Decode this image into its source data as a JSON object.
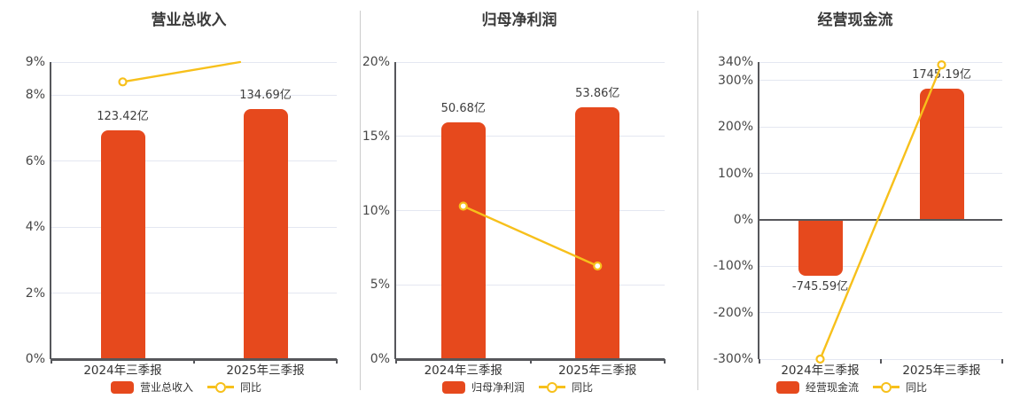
{
  "background_color": "#ffffff",
  "axis_color": "#56575b",
  "gridline_color": "#e4e7f1",
  "separator_color": "#cccccc",
  "chart_data": [
    {
      "type": "bar",
      "title": "营业总收入",
      "categories": [
        "2024年三季报",
        "2025年三季报"
      ],
      "bar_series": {
        "name": "营业总收入",
        "unit": "亿",
        "values": [
          123.42,
          134.69
        ],
        "labels": [
          "123.42亿",
          "134.69亿"
        ],
        "color": "#e6491d",
        "hidden_axis": {
          "min": 0,
          "max": 160
        }
      },
      "line_series": {
        "name": "同比",
        "unit": "%",
        "values": [
          8.4,
          9.13
        ],
        "color": "#f7c01b"
      },
      "y_axis": {
        "min": 0,
        "max": 9,
        "tick_values": [
          9,
          8,
          6,
          4,
          2,
          0
        ],
        "tick_labels": [
          "9%",
          "8%",
          "6%",
          "4%",
          "2%",
          "0%"
        ]
      },
      "legend": [
        "营业总收入",
        "同比"
      ],
      "grid": true,
      "legend_position": "bottom"
    },
    {
      "type": "bar",
      "title": "归母净利润",
      "categories": [
        "2024年三季报",
        "2025年三季报"
      ],
      "bar_series": {
        "name": "归母净利润",
        "unit": "亿",
        "values": [
          50.68,
          53.86
        ],
        "labels": [
          "50.68亿",
          "53.86亿"
        ],
        "color": "#e6491d",
        "hidden_axis": {
          "min": 0,
          "max": 63.5
        }
      },
      "line_series": {
        "name": "同比",
        "unit": "%",
        "values": [
          10.3,
          6.27
        ],
        "color": "#f7c01b"
      },
      "y_axis": {
        "min": 0,
        "max": 20,
        "tick_values": [
          20,
          15,
          10,
          5,
          0
        ],
        "tick_labels": [
          "20%",
          "15%",
          "10%",
          "5%",
          "0%"
        ]
      },
      "legend": [
        "归母净利润",
        "同比"
      ],
      "grid": true,
      "legend_position": "bottom"
    },
    {
      "type": "bar",
      "title": "经营现金流",
      "categories": [
        "2024年三季报",
        "2025年三季报"
      ],
      "bar_series": {
        "name": "经营现金流",
        "unit": "亿",
        "values": [
          -745.59,
          1745.19
        ],
        "labels": [
          "-745.59亿",
          "1745.19亿"
        ],
        "color": "#e6491d",
        "hidden_axis": {
          "min": -1853,
          "max": 2100
        }
      },
      "line_series": {
        "name": "同比",
        "unit": "%",
        "values": [
          -300,
          334.1
        ],
        "color": "#f7c01b"
      },
      "y_axis": {
        "min": -300,
        "max": 340,
        "tick_values": [
          340,
          300,
          200,
          100,
          0,
          -100,
          -200,
          -300
        ],
        "tick_labels": [
          "340%",
          "300%",
          "200%",
          "100%",
          "0%",
          "-100%",
          "-200%",
          "-300%"
        ]
      },
      "legend": [
        "经营现金流",
        "同比"
      ],
      "grid": true,
      "legend_position": "bottom"
    }
  ]
}
